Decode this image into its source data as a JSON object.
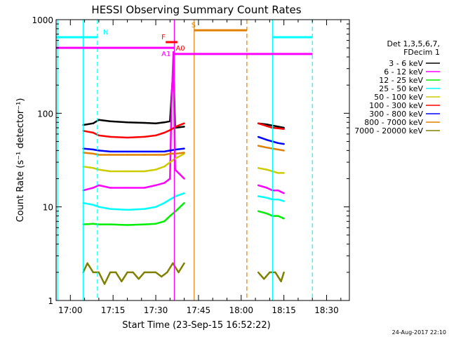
{
  "chart_data": {
    "type": "line",
    "title": "HESSI Observing Summary Count Rates",
    "xlabel": "Start Time (23-Sep-15 16:52:22)",
    "ylabel": "Count Rate (s⁻¹ detector⁻¹)",
    "xlim_minutes": [
      -5,
      98
    ],
    "ylim": [
      1,
      1000
    ],
    "y_scale": "log",
    "x_ticks": [
      "17:00",
      "17:15",
      "17:30",
      "17:45",
      "18:00",
      "18:15",
      "18:30"
    ],
    "x_tick_minutes": [
      0,
      15,
      30,
      45,
      60,
      75,
      90
    ],
    "y_ticks": [
      "1",
      "10",
      "100",
      "1000"
    ],
    "y_tick_values": [
      1,
      10,
      100,
      1000
    ],
    "legend_title": [
      "Det 1,3,5,6,7,",
      "FDecim 1"
    ],
    "legend_position": "right",
    "grid": false,
    "series": [
      {
        "name": "3 - 6 keV",
        "color": "#000000",
        "segments": [
          [
            [
              4.5,
              75
            ],
            [
              8,
              78
            ],
            [
              10,
              85
            ],
            [
              14,
              82
            ],
            [
              20,
              80
            ],
            [
              26,
              79
            ],
            [
              30,
              78
            ],
            [
              33,
              80
            ],
            [
              35,
              82
            ],
            [
              35.5,
              150
            ],
            [
              36.2,
              320
            ],
            [
              36.8,
              70
            ],
            [
              40,
              72
            ]
          ],
          [
            [
              66,
              78
            ],
            [
              69,
              76
            ],
            [
              71,
              74
            ],
            [
              73,
              72
            ],
            [
              75,
              70
            ]
          ]
        ]
      },
      {
        "name": "6 - 12 keV",
        "color": "#ff00ff",
        "segments": [
          [
            [
              4.5,
              15
            ],
            [
              8,
              16
            ],
            [
              10,
              17
            ],
            [
              14,
              16
            ],
            [
              20,
              16
            ],
            [
              26,
              16
            ],
            [
              30,
              17
            ],
            [
              33,
              18
            ],
            [
              35,
              20
            ],
            [
              35.5,
              120
            ],
            [
              36.2,
              450
            ],
            [
              36.8,
              25
            ],
            [
              40,
              20
            ]
          ],
          [
            [
              66,
              17
            ],
            [
              69,
              16
            ],
            [
              71,
              15
            ],
            [
              73,
              15
            ],
            [
              75,
              14
            ]
          ]
        ]
      },
      {
        "name": "12 - 25 keV",
        "color": "#00ee00",
        "segments": [
          [
            [
              4.5,
              6.5
            ],
            [
              8,
              6.6
            ],
            [
              10,
              6.5
            ],
            [
              14,
              6.5
            ],
            [
              20,
              6.4
            ],
            [
              26,
              6.5
            ],
            [
              30,
              6.6
            ],
            [
              33,
              7
            ],
            [
              35,
              8
            ],
            [
              37,
              9
            ],
            [
              40,
              11
            ]
          ],
          [
            [
              66,
              9
            ],
            [
              69,
              8.5
            ],
            [
              71,
              8
            ],
            [
              73,
              8
            ],
            [
              75,
              7.5
            ]
          ]
        ]
      },
      {
        "name": "25 - 50 keV",
        "color": "#00ffff",
        "segments": [
          [
            [
              4.5,
              11
            ],
            [
              8,
              10.5
            ],
            [
              10,
              10
            ],
            [
              14,
              9.5
            ],
            [
              20,
              9.3
            ],
            [
              26,
              9.5
            ],
            [
              30,
              10
            ],
            [
              33,
              11
            ],
            [
              35,
              12
            ],
            [
              37,
              13
            ],
            [
              40,
              14
            ]
          ],
          [
            [
              66,
              13
            ],
            [
              69,
              12.5
            ],
            [
              71,
              12
            ],
            [
              73,
              12
            ],
            [
              75,
              11.5
            ]
          ]
        ]
      },
      {
        "name": "50 - 100 keV",
        "color": "#cccc00",
        "segments": [
          [
            [
              4.5,
              27
            ],
            [
              8,
              26
            ],
            [
              10,
              25
            ],
            [
              14,
              24
            ],
            [
              20,
              24
            ],
            [
              26,
              24
            ],
            [
              30,
              25
            ],
            [
              33,
              27
            ],
            [
              35,
              30
            ],
            [
              37,
              33
            ],
            [
              40,
              37
            ]
          ],
          [
            [
              66,
              26
            ],
            [
              69,
              25
            ],
            [
              71,
              24
            ],
            [
              73,
              23
            ],
            [
              75,
              23
            ]
          ]
        ]
      },
      {
        "name": "100 - 300 keV",
        "color": "#ff0000",
        "segments": [
          [
            [
              4.5,
              65
            ],
            [
              8,
              62
            ],
            [
              10,
              58
            ],
            [
              14,
              56
            ],
            [
              20,
              55
            ],
            [
              26,
              56
            ],
            [
              30,
              58
            ],
            [
              33,
              62
            ],
            [
              35,
              66
            ],
            [
              37,
              72
            ],
            [
              40,
              78
            ]
          ],
          [
            [
              66,
              78
            ],
            [
              69,
              73
            ],
            [
              71,
              70
            ],
            [
              73,
              69
            ],
            [
              75,
              68
            ]
          ]
        ]
      },
      {
        "name": "300 - 800 keV",
        "color": "#0000ff",
        "segments": [
          [
            [
              4.5,
              42
            ],
            [
              8,
              41
            ],
            [
              10,
              40
            ],
            [
              14,
              39
            ],
            [
              20,
              39
            ],
            [
              26,
              39
            ],
            [
              30,
              39
            ],
            [
              33,
              39
            ],
            [
              35,
              40
            ],
            [
              37,
              41
            ],
            [
              40,
              42
            ]
          ],
          [
            [
              66,
              56
            ],
            [
              69,
              52
            ],
            [
              71,
              50
            ],
            [
              73,
              48
            ],
            [
              75,
              47
            ]
          ]
        ]
      },
      {
        "name": "800 - 7000 keV",
        "color": "#e08000",
        "segments": [
          [
            [
              4.5,
              38
            ],
            [
              8,
              37
            ],
            [
              10,
              36
            ],
            [
              14,
              36
            ],
            [
              20,
              36
            ],
            [
              26,
              36
            ],
            [
              30,
              36
            ],
            [
              33,
              36
            ],
            [
              35,
              37
            ],
            [
              37,
              37
            ],
            [
              40,
              38
            ]
          ],
          [
            [
              66,
              45
            ],
            [
              69,
              43
            ],
            [
              71,
              42
            ],
            [
              73,
              41
            ],
            [
              75,
              40
            ]
          ]
        ]
      },
      {
        "name": "7000 - 20000 keV",
        "color": "#808000",
        "segments": [
          [
            [
              4.5,
              2
            ],
            [
              6,
              2.5
            ],
            [
              8,
              2
            ],
            [
              10,
              2
            ],
            [
              12,
              1.5
            ],
            [
              14,
              2
            ],
            [
              16,
              2
            ],
            [
              18,
              1.6
            ],
            [
              20,
              2
            ],
            [
              22,
              2
            ],
            [
              24,
              1.7
            ],
            [
              26,
              2
            ],
            [
              28,
              2
            ],
            [
              30,
              2
            ],
            [
              32,
              1.8
            ],
            [
              34,
              2
            ],
            [
              36,
              2.5
            ],
            [
              38,
              2
            ],
            [
              40,
              2.5
            ]
          ],
          [
            [
              66,
              2
            ],
            [
              68,
              1.7
            ],
            [
              70,
              2
            ],
            [
              72,
              2
            ],
            [
              74,
              1.6
            ],
            [
              75,
              2
            ]
          ]
        ]
      }
    ],
    "state_bars": [
      {
        "label": "N",
        "color": "#00ffff",
        "y": 650,
        "start": -5,
        "end": 9.5,
        "label_at": 11.5
      },
      {
        "label": "N",
        "color": "#00ffff",
        "y": 650,
        "start": 71,
        "end": 85,
        "label_at": null
      },
      {
        "label": "A1",
        "color": "#ff00ff",
        "y": 500,
        "start": -5,
        "end": 36.5,
        "label_at": 32
      },
      {
        "label": "A1",
        "color": "#ff00ff",
        "y": 430,
        "start": 36.5,
        "end": 85,
        "label_at": null
      },
      {
        "label": "F",
        "color": "#ff0000",
        "y": 575,
        "start": 33.5,
        "end": 37.5,
        "label_at": 32
      },
      {
        "label": "A0",
        "color": "#ff0000",
        "y": 575,
        "start": 37.5,
        "end": 37.6,
        "label_at": 37
      },
      {
        "label": "S",
        "color": "#e08000",
        "y": 770,
        "start": 43.5,
        "end": 62,
        "label_at": 42.5
      }
    ],
    "vertical_markers": [
      {
        "x": -4.5,
        "color": "#00ffff",
        "style": "solid"
      },
      {
        "x": 9.5,
        "color": "#00ffff",
        "style": "dashed"
      },
      {
        "x": 4.5,
        "color": "#00ffff",
        "style": "solid"
      },
      {
        "x": 36.5,
        "color": "#ff00ff",
        "style": "solid"
      },
      {
        "x": 43.5,
        "color": "#e08000",
        "style": "solid"
      },
      {
        "x": 62,
        "color": "#e08000",
        "style": "dashed"
      },
      {
        "x": 71,
        "color": "#00ffff",
        "style": "solid"
      },
      {
        "x": 85,
        "color": "#00ffff",
        "style": "dashed"
      }
    ],
    "footer_timestamp": "24-Aug-2017 22:10"
  }
}
